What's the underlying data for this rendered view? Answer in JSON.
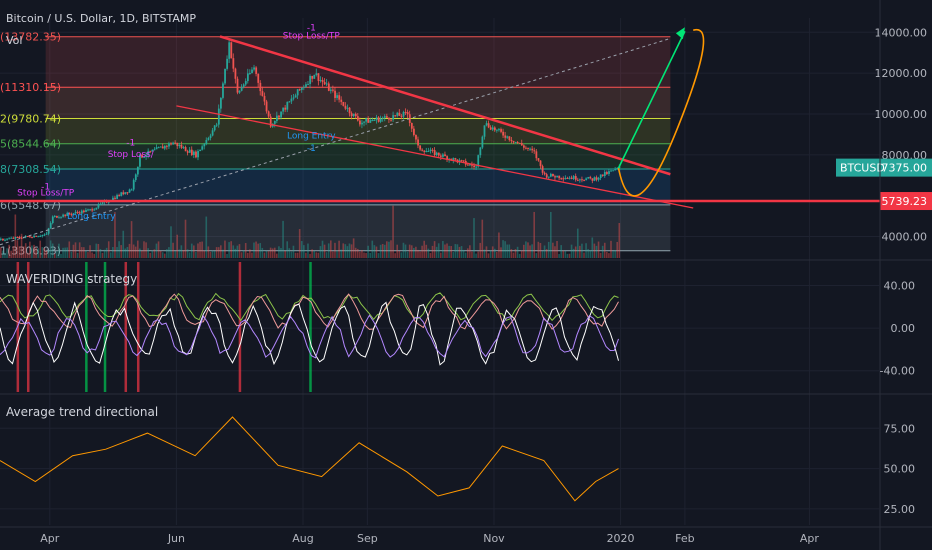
{
  "header": {
    "title": "Bitcoin / U.S. Dollar, 1D, BITSTAMP",
    "vol_label": "Vol"
  },
  "panes": {
    "strategy_label": "WAVERIDING strategy",
    "adx_label": "Average trend directional"
  },
  "colors": {
    "background": "#131722",
    "grid": "#1e2230",
    "up": "#26a69a",
    "down": "#ef5350",
    "trendline": "#f23645",
    "projection_up": "#00e676",
    "projection_path": "#ff9800",
    "price_badge": "#26a69a",
    "level_badge": "#f23645",
    "marker": "#e040fb",
    "entry": "#2196f3"
  },
  "fib_levels": [
    {
      "label": "(13782.35)",
      "value": 13782.35,
      "color": "#ef5350"
    },
    {
      "label": "(11310.15)",
      "value": 11310.15,
      "color": "#ff5252"
    },
    {
      "label": "2(9780.74)",
      "value": 9780.74,
      "color": "#cddc39"
    },
    {
      "label": "5(8544.64)",
      "value": 8544.64,
      "color": "#4caf50"
    },
    {
      "label": "8(7308.54)",
      "value": 7308.54,
      "color": "#26a69a"
    },
    {
      "label": "6(5548.67)",
      "value": 5548.67,
      "color": "#90a4ae"
    },
    {
      "label": "1(3306.93)",
      "value": 3306.93,
      "color": "#90a4ae"
    }
  ],
  "annotations": [
    {
      "text": "Stop Loss/TP",
      "kind": "stop",
      "date": "2019-03-30",
      "price": 6000
    },
    {
      "text": "-1",
      "kind": "stop",
      "date": "2019-03-30",
      "price": 6300
    },
    {
      "text": "Long Entry",
      "kind": "entry",
      "date": "2019-04-21",
      "price": 4850
    },
    {
      "text": "Stop Loss/",
      "kind": "stop",
      "date": "2019-05-10",
      "price": 7900
    },
    {
      "text": "-1",
      "kind": "stop",
      "date": "2019-05-10",
      "price": 8450
    },
    {
      "text": "-1",
      "kind": "stop",
      "date": "2019-08-05",
      "price": 14100
    },
    {
      "text": "Stop Loss/TP",
      "kind": "stop",
      "date": "2019-08-05",
      "price": 13700
    },
    {
      "text": "Long Entry",
      "kind": "entry",
      "date": "2019-08-05",
      "price": 8800
    },
    {
      "text": "-1",
      "kind": "entry",
      "date": "2019-08-05",
      "price": 8200
    }
  ],
  "price_badges": [
    {
      "label": "BTCUSD",
      "value": "7375.00",
      "price": 7375
    },
    {
      "value": "5739.23",
      "price": 5739.23
    }
  ],
  "axes": {
    "price_ticks": [
      "14000.00",
      "12000.00",
      "10000.00",
      "8000.00",
      "4000.00"
    ],
    "strategy_ticks": [
      "40.00",
      "0.00",
      "-40.00"
    ],
    "adx_ticks": [
      "75.00",
      "50.00",
      "25.00"
    ],
    "x_ticks": [
      "Apr",
      "Jun",
      "Aug",
      "Sep",
      "Nov",
      "2020",
      "Feb",
      "Apr"
    ]
  },
  "chart_data": [
    {
      "type": "candlestick",
      "title": "Bitcoin / U.S. Dollar, 1D, BITSTAMP",
      "x_range": [
        "2019-03-08",
        "2020-05-05"
      ],
      "ylim": [
        2950,
        14700
      ],
      "price_ticks": [
        14000,
        12000,
        10000,
        8000,
        4000
      ],
      "series": {
        "anchors": [
          [
            "2019-03-08",
            3850
          ],
          [
            "2019-03-30",
            4100
          ],
          [
            "2019-04-02",
            4950
          ],
          [
            "2019-04-20",
            5300
          ],
          [
            "2019-05-10",
            6350
          ],
          [
            "2019-05-14",
            7900
          ],
          [
            "2019-05-30",
            8600
          ],
          [
            "2019-06-10",
            8000
          ],
          [
            "2019-06-20",
            9500
          ],
          [
            "2019-06-26",
            13500
          ],
          [
            "2019-06-30",
            11000
          ],
          [
            "2019-07-08",
            12300
          ],
          [
            "2019-07-16",
            9500
          ],
          [
            "2019-08-06",
            12000
          ],
          [
            "2019-08-28",
            9600
          ],
          [
            "2019-09-20",
            10000
          ],
          [
            "2019-09-25",
            8350
          ],
          [
            "2019-10-23",
            7400
          ],
          [
            "2019-10-27",
            9550
          ],
          [
            "2019-11-20",
            8100
          ],
          [
            "2019-11-25",
            7000
          ],
          [
            "2019-12-18",
            6800
          ],
          [
            "2019-12-31",
            7350
          ]
        ]
      },
      "trendlines": [
        {
          "from": [
            "2019-06-22",
            13800
          ],
          "to": [
            "2020-01-25",
            7050
          ]
        },
        {
          "from": [
            "2019-06-01",
            10400
          ],
          "to": [
            "2020-02-05",
            5400
          ]
        }
      ],
      "dashed_trendline": {
        "from": [
          "2019-03-08",
          3600
        ],
        "to": [
          "2020-01-25",
          13700
        ]
      },
      "projection": {
        "green": [
          [
            "2019-12-31",
            7350
          ],
          [
            "2020-02-01",
            14050
          ]
        ],
        "orange": [
          [
            "2019-12-31",
            7350
          ],
          [
            "2020-01-07",
            5700
          ],
          [
            "2020-01-28",
            9200
          ],
          [
            "2020-02-05",
            14100
          ]
        ]
      },
      "support_line": 5739.23
    },
    {
      "type": "line",
      "title": "WAVERIDING strategy",
      "ylim": [
        -60,
        62
      ],
      "ticks": [
        40,
        0,
        -40
      ],
      "series": [
        {
          "color": "#8bc34a",
          "mean": 20,
          "amp": 12
        },
        {
          "color": "#ef9a9a",
          "mean": 15,
          "amp": 16
        },
        {
          "color": "#ffffff",
          "mean": -5,
          "amp": 28
        },
        {
          "color": "#b388ff",
          "mean": -8,
          "amp": 20
        }
      ],
      "signal_bars": [
        {
          "date": "2019-03-16",
          "color": "#f23645"
        },
        {
          "date": "2019-03-21",
          "color": "#f23645"
        },
        {
          "date": "2019-04-18",
          "color": "#00c853"
        },
        {
          "date": "2019-04-27",
          "color": "#00c853"
        },
        {
          "date": "2019-05-07",
          "color": "#f23645"
        },
        {
          "date": "2019-05-13",
          "color": "#f23645"
        },
        {
          "date": "2019-07-01",
          "color": "#f23645"
        },
        {
          "date": "2019-08-04",
          "color": "#00c853"
        }
      ]
    },
    {
      "type": "line",
      "title": "Average trend directional",
      "ylim": [
        15,
        95
      ],
      "ticks": [
        75,
        50,
        25
      ],
      "series": [
        {
          "color": "#ff9800",
          "points": [
            [
              "2019-03-08",
              55
            ],
            [
              "2019-03-25",
              42
            ],
            [
              "2019-04-12",
              58
            ],
            [
              "2019-04-28",
              62
            ],
            [
              "2019-05-18",
              72
            ],
            [
              "2019-06-10",
              58
            ],
            [
              "2019-06-28",
              82
            ],
            [
              "2019-07-20",
              52
            ],
            [
              "2019-08-10",
              45
            ],
            [
              "2019-08-28",
              66
            ],
            [
              "2019-09-20",
              48
            ],
            [
              "2019-10-05",
              33
            ],
            [
              "2019-10-20",
              38
            ],
            [
              "2019-11-05",
              64
            ],
            [
              "2019-11-25",
              55
            ],
            [
              "2019-12-10",
              30
            ],
            [
              "2019-12-20",
              42
            ],
            [
              "2019-12-31",
              50
            ]
          ]
        }
      ]
    }
  ]
}
